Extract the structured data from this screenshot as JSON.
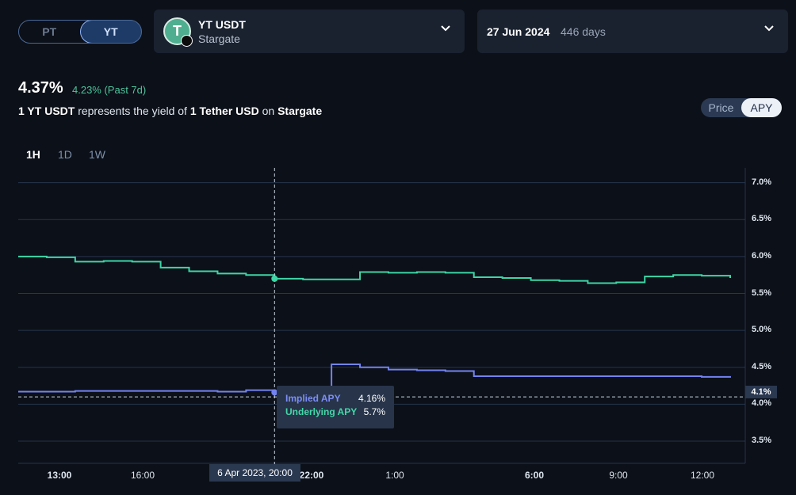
{
  "toggle": {
    "pt": "PT",
    "yt": "YT",
    "active": "YT"
  },
  "asset": {
    "name": "YT USDT",
    "protocol": "Stargate",
    "icon": "tether-icon",
    "icon_glyph": "T"
  },
  "expiry": {
    "date": "27 Jun 2024",
    "days": "446 days"
  },
  "apy": {
    "value": "4.37%",
    "past7d": "4.23% (Past 7d)"
  },
  "description": {
    "p1": "1 YT USDT",
    "p2": " represents the yield of ",
    "p3": "1 Tether USD",
    "p4": " on ",
    "p5": "Stargate"
  },
  "view_toggle": {
    "price": "Price",
    "apy": "APY",
    "active": "APY"
  },
  "ranges": [
    "1H",
    "1D",
    "1W"
  ],
  "active_range": "1H",
  "colors": {
    "implied": "#7383f2",
    "underlying": "#3dd6a6",
    "grid": "#26354d"
  },
  "chart_data": {
    "type": "line",
    "x_ticks": [
      "13:00",
      "16:00",
      "22:00",
      "1:00",
      "6:00",
      "9:00",
      "12:00"
    ],
    "bold_x_ticks": [
      "13:00",
      "22:00",
      "6:00"
    ],
    "y_ticks": [
      "7.0%",
      "6.5%",
      "6.0%",
      "5.5%",
      "5.0%",
      "4.5%",
      "4.0%",
      "3.5%"
    ],
    "ylim": [
      3.2,
      7.2
    ],
    "series": [
      {
        "name": "Underlying APY",
        "color": "#3dd6a6",
        "step": true,
        "values": [
          6.0,
          5.99,
          5.93,
          5.94,
          5.93,
          5.85,
          5.8,
          5.77,
          5.75,
          5.7,
          5.69,
          5.69,
          5.79,
          5.78,
          5.79,
          5.78,
          5.72,
          5.71,
          5.68,
          5.67,
          5.64,
          5.65,
          5.73,
          5.75,
          5.74,
          5.71
        ]
      },
      {
        "name": "Implied APY",
        "color": "#7383f2",
        "step": true,
        "values": [
          4.17,
          4.17,
          4.18,
          4.18,
          4.18,
          4.18,
          4.18,
          4.17,
          4.19,
          4.16,
          4.16,
          4.54,
          4.5,
          4.47,
          4.46,
          4.45,
          4.38,
          4.38,
          4.38,
          4.38,
          4.38,
          4.38,
          4.38,
          4.38,
          4.37,
          4.36
        ]
      }
    ],
    "reference_line": {
      "value": 4.1,
      "label": "4.1%"
    },
    "crosshair": {
      "label": "6 Apr 2023, 20:00",
      "index": 9
    }
  },
  "tooltip": {
    "implied_label": "Implied APY",
    "implied_value": "4.16%",
    "underlying_label": "Underlying APY",
    "underlying_value": "5.7%"
  }
}
